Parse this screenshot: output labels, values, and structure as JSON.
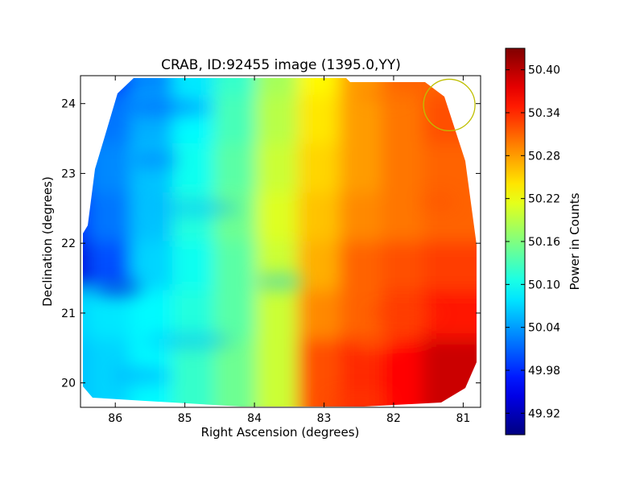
{
  "chart_data": {
    "type": "heatmap",
    "title": "CRAB, ID:92455 image (1395.0,YY)",
    "xlabel": "Right Ascension (degrees)",
    "ylabel": "Declination (degrees)",
    "xlim": [
      86.5,
      80.75
    ],
    "ylim": [
      19.65,
      24.4
    ],
    "x_ticks": [
      86,
      85,
      84,
      83,
      82,
      81
    ],
    "y_ticks": [
      20,
      21,
      22,
      23,
      24
    ],
    "grid": false,
    "colormap": "jet",
    "colorbar": {
      "label": "Power in Counts",
      "vmin": 49.89,
      "vmax": 50.43,
      "ticks": [
        {
          "value": 49.92,
          "label": "49.92"
        },
        {
          "value": 49.98,
          "label": "49.98"
        },
        {
          "value": 50.04,
          "label": "50.04"
        },
        {
          "value": 50.1,
          "label": "50.10"
        },
        {
          "value": 50.16,
          "label": "50.16"
        },
        {
          "value": 50.22,
          "label": "50.22"
        },
        {
          "value": 50.28,
          "label": "50.28"
        },
        {
          "value": 50.34,
          "label": "50.34"
        },
        {
          "value": 50.4,
          "label": "50.40"
        }
      ]
    },
    "source_marker": {
      "ra": 81.2,
      "dec": 23.98,
      "radius_deg": 0.37,
      "color": "#bfbf00"
    },
    "value_grid": {
      "ra": [
        86.4,
        85.8,
        85.2,
        84.6,
        84.0,
        83.4,
        82.8,
        82.2,
        81.6,
        81.0
      ],
      "dec": [
        24.2,
        23.5,
        22.8,
        22.1,
        21.4,
        20.7,
        20.0
      ],
      "values": [
        [
          50.0,
          49.99,
          50.03,
          50.08,
          50.12,
          50.18,
          50.23,
          50.28,
          50.31,
          50.31
        ],
        [
          50.01,
          50.02,
          50.05,
          50.09,
          50.13,
          50.19,
          50.24,
          50.28,
          50.3,
          50.32
        ],
        [
          50.0,
          50.03,
          50.06,
          50.1,
          50.14,
          50.2,
          50.25,
          50.28,
          50.3,
          50.31
        ],
        [
          49.98,
          50.02,
          50.06,
          50.11,
          50.15,
          50.21,
          50.26,
          50.29,
          50.3,
          50.31
        ],
        [
          49.94,
          50.0,
          50.07,
          50.1,
          50.14,
          50.2,
          50.27,
          50.31,
          50.32,
          50.33
        ],
        [
          50.07,
          50.08,
          50.09,
          50.11,
          50.14,
          50.2,
          50.29,
          50.31,
          50.33,
          50.35
        ],
        [
          50.06,
          50.07,
          50.09,
          50.12,
          50.15,
          50.2,
          50.32,
          50.34,
          50.36,
          50.39
        ]
      ]
    }
  }
}
